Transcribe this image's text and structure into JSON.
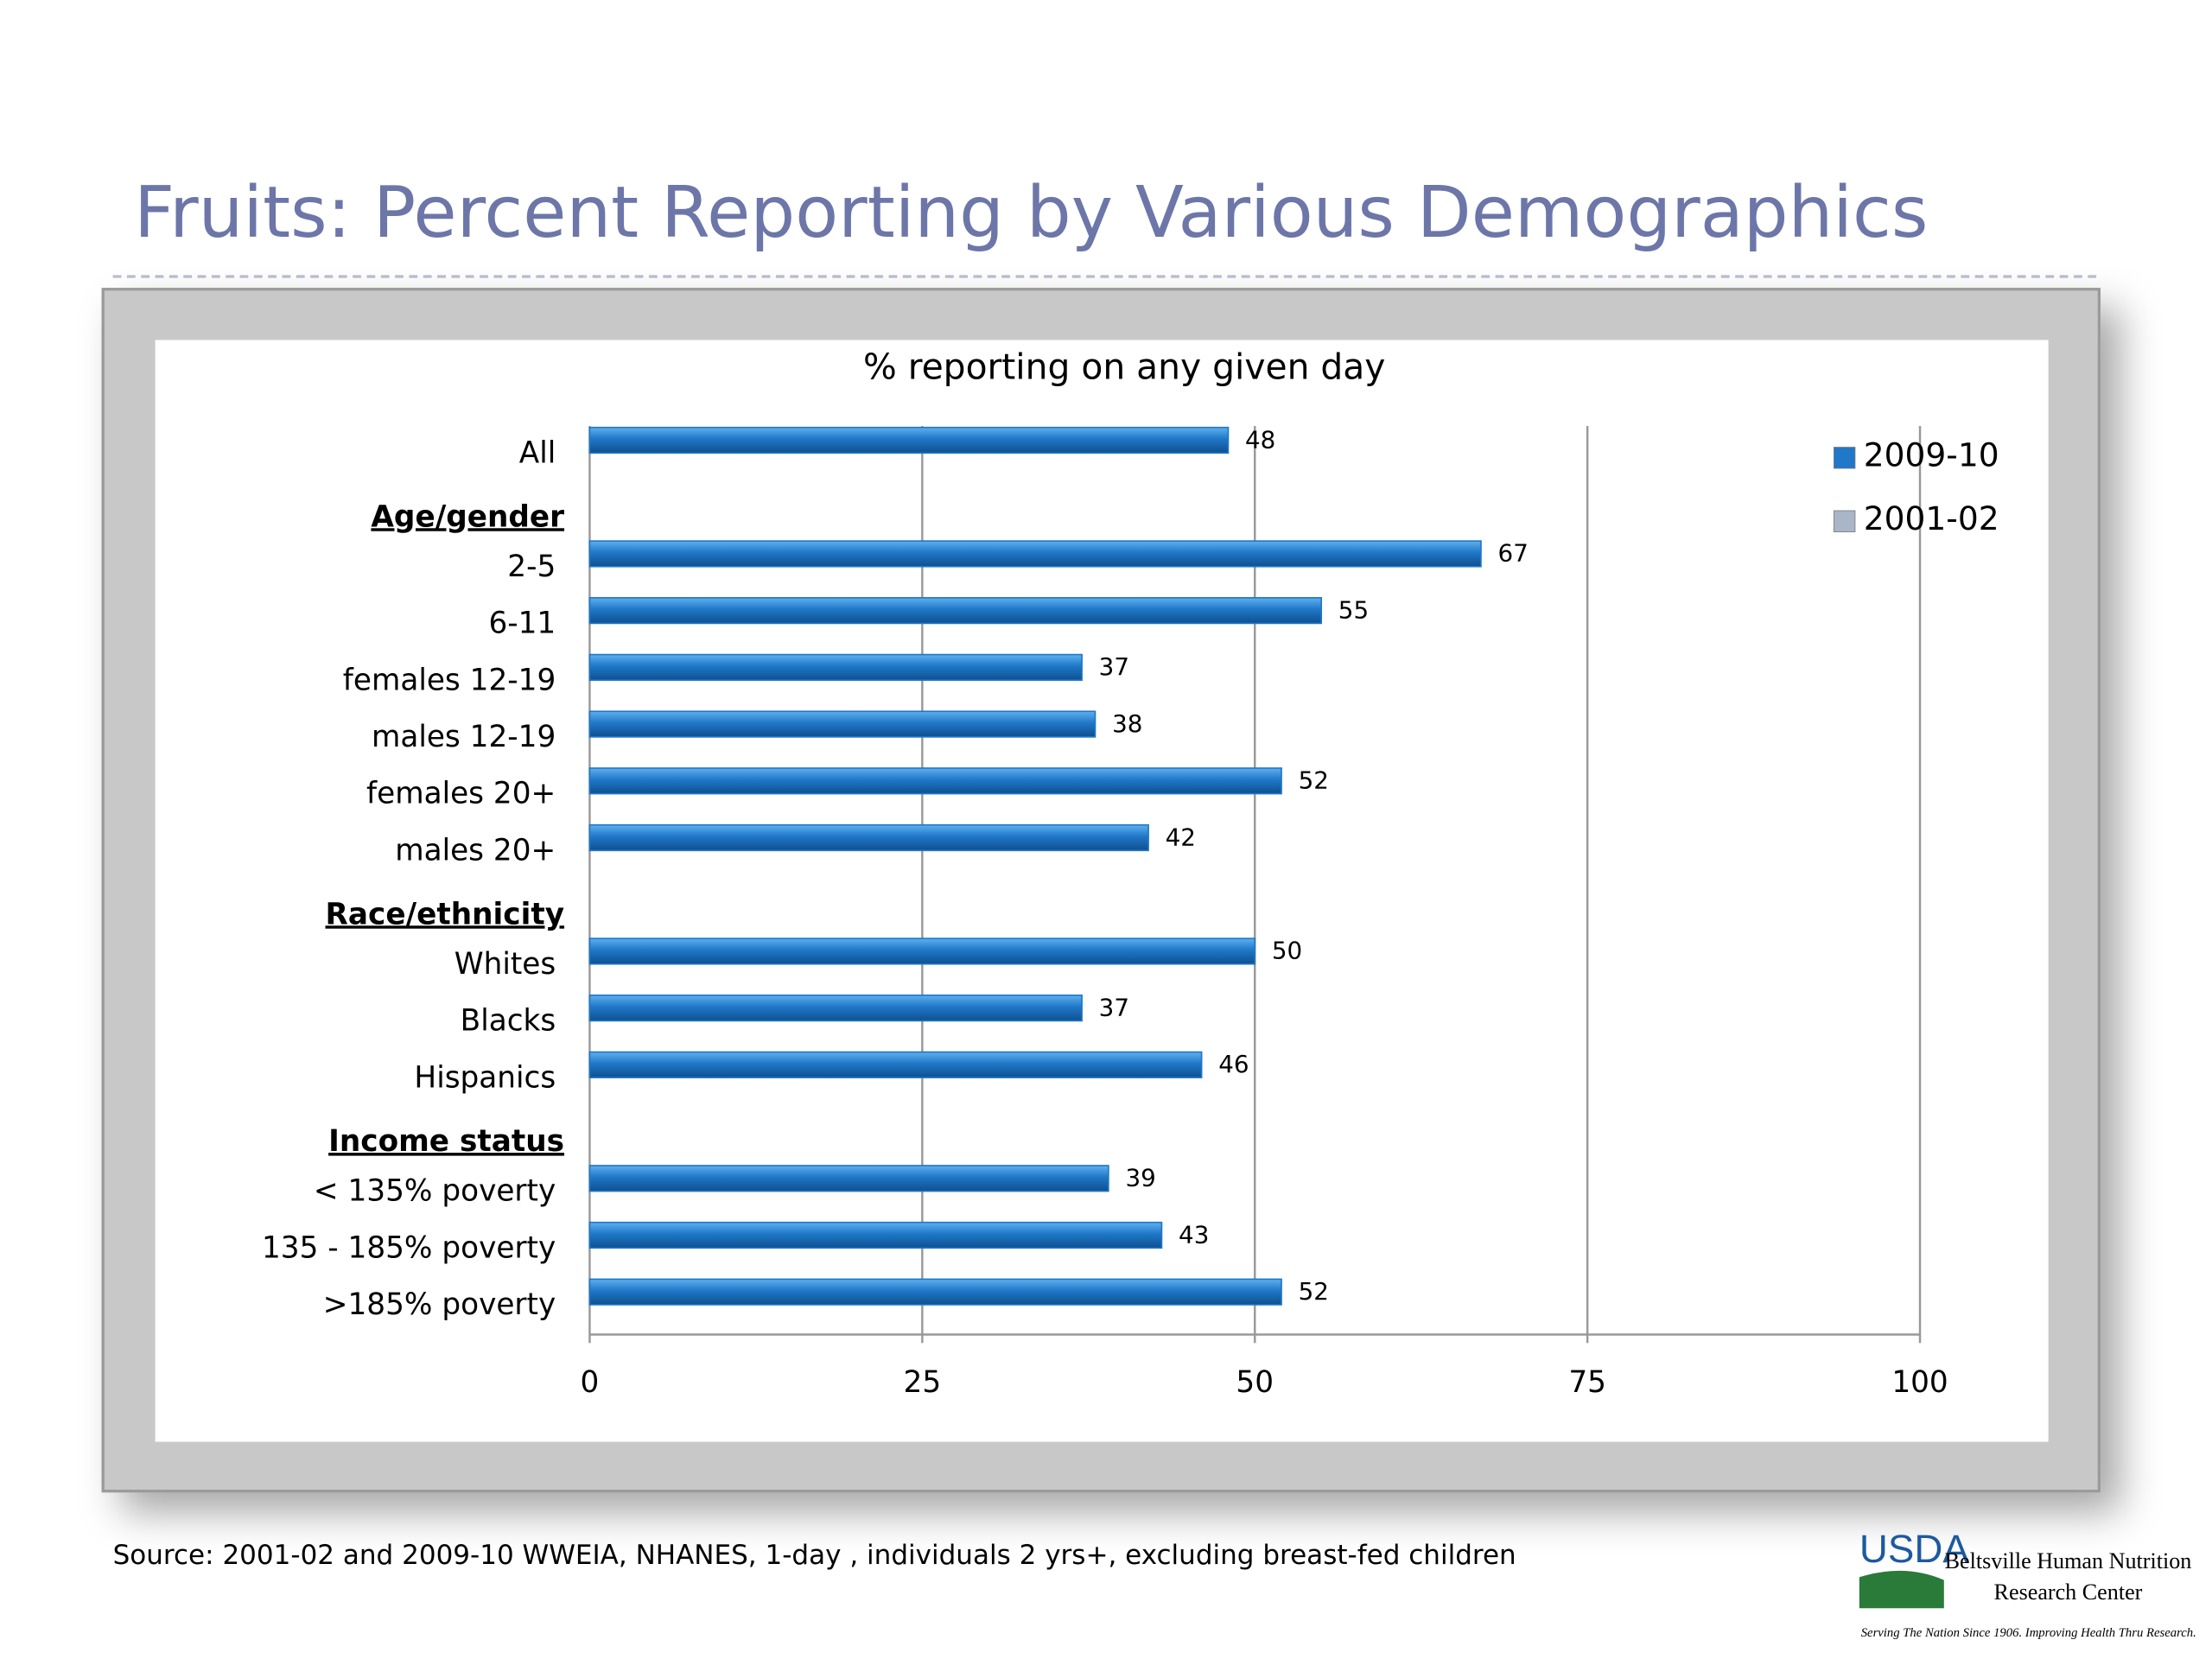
{
  "title": "Fruits:  Percent Reporting by Various Demographics",
  "source": "Source:  2001-02 and 2009-10 WWEIA, NHANES, 1-day , individuals 2 yrs+, excluding breast-fed children",
  "logo": {
    "name": "USDA",
    "center": [
      "Beltsville Human Nutrition",
      "Research Center"
    ],
    "motto": "Serving The Nation Since 1906. Improving Health Thru Research."
  },
  "chart_data": {
    "type": "hbar",
    "title": "% reporting on any given day",
    "categories": [
      "All",
      "Age/gender",
      "2-5",
      "6-11",
      "females 12-19",
      "males 12-19",
      "females 20+",
      "males 20+",
      "Race/ethnicity",
      "Whites",
      "Blacks",
      "Hispanics",
      "Income status",
      "< 135% poverty",
      "135 - 185% poverty",
      ">185% poverty"
    ],
    "series": [
      {
        "name": "2009-10",
        "color": "#1f78c8",
        "values": [
          48,
          null,
          67,
          55,
          37,
          38,
          52,
          42,
          null,
          50,
          37,
          46,
          null,
          39,
          43,
          52
        ]
      },
      {
        "name": "2001-02",
        "color": "#a9b6c8",
        "values": [
          null,
          null,
          null,
          null,
          null,
          null,
          null,
          null,
          null,
          null,
          null,
          null,
          null,
          null,
          null,
          null
        ]
      }
    ],
    "xlim": [
      0,
      100
    ],
    "xticks": [
      0,
      25,
      50,
      75,
      100
    ],
    "grid": true,
    "legend": "top-right"
  }
}
